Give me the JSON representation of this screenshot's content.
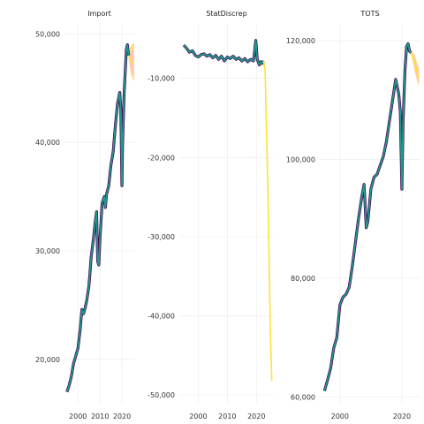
{
  "chart_data": {
    "type": "line",
    "layout": "facets",
    "grid": true,
    "legend": "none",
    "colors": {
      "history_outline": "#4B0055",
      "history_fill": "#1F9A8A",
      "forecast_line": "#FDE333",
      "interval_80": "#FFC0C0",
      "interval_95": "#FFD27F"
    },
    "panels": [
      {
        "title": "Import",
        "ylim": [
          16000,
          51000
        ],
        "y_ticks": [
          20000,
          30000,
          40000,
          50000
        ],
        "y_tick_labels": [
          "20,000",
          "30,000",
          "40,000",
          "50,000"
        ],
        "x_ticks": [
          2000,
          2010,
          2020
        ],
        "x_tick_labels": [
          "2000",
          "2010",
          "2020"
        ],
        "xlim": [
          1993.5,
          2026
        ],
        "history": [
          [
            1995.0,
            17000
          ],
          [
            1996.0,
            17600
          ],
          [
            1997.0,
            18400
          ],
          [
            1998.0,
            19600
          ],
          [
            1999.0,
            20300
          ],
          [
            2000.0,
            21000
          ],
          [
            2001.0,
            22700
          ],
          [
            2001.8,
            24600
          ],
          [
            2002.5,
            24200
          ],
          [
            2003.0,
            24500
          ],
          [
            2004.0,
            25400
          ],
          [
            2005.0,
            26800
          ],
          [
            2005.5,
            28000
          ],
          [
            2006.0,
            29400
          ],
          [
            2007.0,
            31000
          ],
          [
            2007.8,
            32600
          ],
          [
            2008.5,
            33600
          ],
          [
            2009.0,
            29000
          ],
          [
            2009.5,
            28700
          ],
          [
            2010.0,
            31000
          ],
          [
            2011.0,
            34400
          ],
          [
            2012.0,
            35000
          ],
          [
            2012.5,
            34000
          ],
          [
            2013.0,
            35200
          ],
          [
            2014.0,
            36000
          ],
          [
            2015.0,
            37900
          ],
          [
            2016.0,
            39100
          ],
          [
            2017.0,
            41500
          ],
          [
            2018.0,
            43600
          ],
          [
            2019.0,
            44600
          ],
          [
            2019.5,
            43000
          ],
          [
            2020.0,
            36000
          ],
          [
            2020.3,
            40000
          ],
          [
            2021.0,
            44500
          ],
          [
            2021.5,
            46500
          ],
          [
            2022.0,
            48600
          ],
          [
            2022.5,
            49000
          ],
          [
            2023.0,
            48000
          ]
        ],
        "forecast": [
          [
            2023.0,
            48000
          ],
          [
            2024.0,
            47600
          ],
          [
            2025.0,
            47300
          ],
          [
            2025.5,
            47200
          ]
        ],
        "interval_80": [
          [
            2023.0,
            48100,
            47900
          ],
          [
            2024.0,
            48300,
            46800
          ],
          [
            2025.0,
            48500,
            46300
          ],
          [
            2025.5,
            48600,
            46100
          ]
        ],
        "interval_95": [
          [
            2023.0,
            48200,
            47800
          ],
          [
            2024.0,
            48900,
            46300
          ],
          [
            2025.0,
            49100,
            45800
          ],
          [
            2025.5,
            49200,
            45600
          ]
        ]
      },
      {
        "title": "StatDiscrep",
        "ylim": [
          -51000,
          -3000
        ],
        "y_ticks": [
          -10000,
          -20000,
          -30000,
          -40000,
          -50000
        ],
        "y_tick_labels": [
          "-10,000",
          "-20,000",
          "-30,000",
          "-40,000",
          "-50,000"
        ],
        "x_ticks": [
          2000,
          2010,
          2020
        ],
        "x_tick_labels": [
          "2000",
          "2010",
          "2020"
        ],
        "xlim": [
          1993.5,
          2026
        ],
        "history": [
          [
            1995.0,
            -5800
          ],
          [
            1996.0,
            -6200
          ],
          [
            1997.0,
            -6700
          ],
          [
            1998.0,
            -6500
          ],
          [
            1999.0,
            -7100
          ],
          [
            2000.0,
            -7300
          ],
          [
            2001.0,
            -7000
          ],
          [
            2002.0,
            -6900
          ],
          [
            2003.0,
            -7200
          ],
          [
            2004.0,
            -7000
          ],
          [
            2005.0,
            -7400
          ],
          [
            2006.0,
            -7100
          ],
          [
            2007.0,
            -7600
          ],
          [
            2008.0,
            -7200
          ],
          [
            2009.0,
            -7800
          ],
          [
            2010.0,
            -7300
          ],
          [
            2011.0,
            -7500
          ],
          [
            2012.0,
            -7200
          ],
          [
            2013.0,
            -7600
          ],
          [
            2014.0,
            -7400
          ],
          [
            2015.0,
            -7800
          ],
          [
            2016.0,
            -7500
          ],
          [
            2017.0,
            -7900
          ],
          [
            2018.0,
            -7600
          ],
          [
            2019.0,
            -7800
          ],
          [
            2019.8,
            -5200
          ],
          [
            2020.3,
            -7600
          ],
          [
            2021.0,
            -8300
          ],
          [
            2021.5,
            -7900
          ],
          [
            2022.0,
            -8100
          ],
          [
            2022.5,
            -7800
          ]
        ],
        "forecast": [
          [
            2022.5,
            -7800
          ],
          [
            2023.0,
            -9000
          ],
          [
            2024.0,
            -25000
          ],
          [
            2024.8,
            -42000
          ],
          [
            2025.3,
            -48200
          ]
        ],
        "interval_80": [],
        "interval_95": []
      },
      {
        "title": "TOTS",
        "ylim": [
          59000,
          123000
        ],
        "y_ticks": [
          60000,
          80000,
          100000,
          120000
        ],
        "y_tick_labels": [
          "60,000",
          "80,000",
          "100,000",
          "120,000"
        ],
        "x_ticks": [
          2000,
          2020
        ],
        "x_tick_labels": [
          "2000",
          "2020"
        ],
        "xlim": [
          1993.5,
          2026
        ],
        "history": [
          [
            1995.0,
            61000
          ],
          [
            1996.0,
            62800
          ],
          [
            1997.0,
            64800
          ],
          [
            1998.0,
            68200
          ],
          [
            1999.0,
            70000
          ],
          [
            2000.0,
            75500
          ],
          [
            2001.0,
            76800
          ],
          [
            2002.0,
            77300
          ],
          [
            2003.0,
            78500
          ],
          [
            2004.0,
            82000
          ],
          [
            2005.0,
            86000
          ],
          [
            2006.0,
            90000
          ],
          [
            2007.0,
            93500
          ],
          [
            2007.8,
            95800
          ],
          [
            2008.5,
            88500
          ],
          [
            2009.0,
            89500
          ],
          [
            2010.0,
            95000
          ],
          [
            2011.0,
            97000
          ],
          [
            2012.0,
            97500
          ],
          [
            2013.0,
            99000
          ],
          [
            2014.0,
            100500
          ],
          [
            2015.0,
            103000
          ],
          [
            2016.0,
            106500
          ],
          [
            2017.0,
            110000
          ],
          [
            2018.0,
            113500
          ],
          [
            2019.0,
            111000
          ],
          [
            2019.5,
            108000
          ],
          [
            2020.0,
            95000
          ],
          [
            2020.4,
            106500
          ],
          [
            2021.0,
            115000
          ],
          [
            2021.5,
            119000
          ],
          [
            2022.0,
            119500
          ],
          [
            2022.5,
            118200
          ],
          [
            2023.0,
            118000
          ]
        ],
        "forecast": [
          [
            2023.0,
            118000
          ],
          [
            2024.0,
            116500
          ],
          [
            2025.0,
            114600
          ],
          [
            2025.5,
            113800
          ]
        ],
        "interval_80": [
          [
            2023.0,
            118200,
            117800
          ],
          [
            2024.0,
            117300,
            115700
          ],
          [
            2025.0,
            115600,
            113600
          ],
          [
            2025.5,
            114900,
            112900
          ]
        ],
        "interval_95": [
          [
            2023.0,
            118300,
            117700
          ],
          [
            2024.0,
            117800,
            115200
          ],
          [
            2025.0,
            116200,
            113000
          ],
          [
            2025.5,
            115500,
            112300
          ]
        ]
      }
    ]
  }
}
